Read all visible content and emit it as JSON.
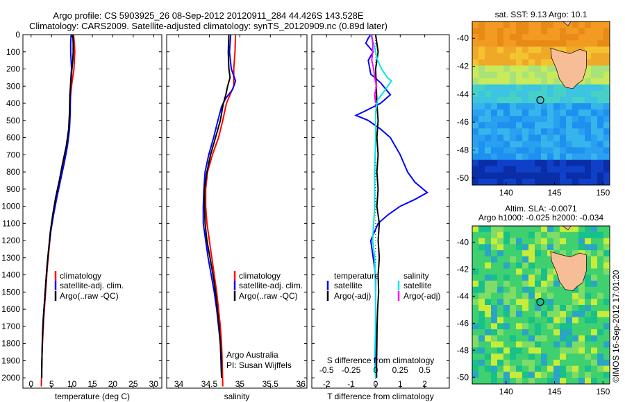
{
  "header": {
    "title_line1": "Argo profile: CS 5903925_26 08-Sep-2012 20120911_284 44.426S 143.528E",
    "title_line2": "Climatology: CARS2009. Satellite-adjusted climatology: synTS_20120909.nc (0.89d later)"
  },
  "colors": {
    "climatology": "#ff0000",
    "satellite": "#0000ff",
    "argo": "#000000",
    "salinity_satellite": "#00e5e5",
    "salinity_argo": "#ff00ff",
    "land": "#f6bd96"
  },
  "depth_ticks": [
    "0",
    "100",
    "200",
    "300",
    "400",
    "500",
    "600",
    "700",
    "800",
    "900",
    "1000",
    "1100",
    "1200",
    "1300",
    "1400",
    "1500",
    "1600",
    "1700",
    "1800",
    "1900",
    "2000"
  ],
  "chart_data": [
    {
      "type": "line",
      "id": "temperature",
      "xlabel": "temperature (deg C)",
      "ylabel": "",
      "xlim": [
        -2,
        32
      ],
      "ylim": [
        2060,
        0
      ],
      "xticks": [
        "0",
        "5",
        "10",
        "15",
        "20",
        "25",
        "30"
      ],
      "legend": [
        "climatology",
        "satellite-adj. clim.",
        "Argo(..raw -QC)"
      ],
      "series": [
        {
          "name": "climatology",
          "points": [
            [
              10.4,
              0
            ],
            [
              10.6,
              50
            ],
            [
              10.7,
              100
            ],
            [
              10.6,
              150
            ],
            [
              10.5,
              200
            ],
            [
              10.3,
              230
            ],
            [
              10.0,
              280
            ],
            [
              9.7,
              350
            ],
            [
              9.5,
              450
            ],
            [
              9.3,
              550
            ],
            [
              8.8,
              650
            ],
            [
              7.9,
              750
            ],
            [
              7.0,
              850
            ],
            [
              6.1,
              950
            ],
            [
              5.4,
              1050
            ],
            [
              4.8,
              1150
            ],
            [
              4.4,
              1250
            ],
            [
              4.0,
              1350
            ],
            [
              3.7,
              1450
            ],
            [
              3.4,
              1550
            ],
            [
              3.1,
              1650
            ],
            [
              2.9,
              1750
            ],
            [
              2.7,
              1850
            ],
            [
              2.6,
              1950
            ],
            [
              2.5,
              2050
            ]
          ]
        },
        {
          "name": "satellite-adj. clim.",
          "points": [
            [
              9.8,
              0
            ],
            [
              9.7,
              50
            ],
            [
              9.7,
              100
            ],
            [
              9.8,
              150
            ],
            [
              9.9,
              200
            ],
            [
              9.8,
              230
            ],
            [
              9.7,
              280
            ],
            [
              9.6,
              350
            ],
            [
              9.6,
              450
            ],
            [
              9.4,
              550
            ],
            [
              8.9,
              650
            ],
            [
              8.1,
              750
            ],
            [
              7.2,
              850
            ],
            [
              6.3,
              950
            ],
            [
              5.5,
              1050
            ],
            [
              4.8,
              1150
            ],
            [
              4.3,
              1250
            ],
            [
              3.9,
              1350
            ],
            [
              3.6,
              1450
            ],
            [
              3.3,
              1550
            ],
            [
              3.0,
              1650
            ],
            [
              2.8,
              1750
            ],
            [
              2.7,
              1850
            ],
            [
              2.6,
              1950
            ],
            [
              2.6,
              2000
            ]
          ]
        },
        {
          "name": "Argo(..raw -QC)",
          "points": [
            [
              10.2,
              0
            ],
            [
              10.3,
              50
            ],
            [
              10.3,
              100
            ],
            [
              10.2,
              150
            ],
            [
              10.0,
              200
            ],
            [
              9.9,
              230
            ],
            [
              9.7,
              280
            ],
            [
              9.5,
              350
            ],
            [
              9.4,
              450
            ],
            [
              9.2,
              550
            ],
            [
              8.6,
              650
            ],
            [
              7.7,
              750
            ],
            [
              6.9,
              850
            ],
            [
              6.0,
              950
            ],
            [
              5.3,
              1050
            ],
            [
              4.7,
              1150
            ],
            [
              4.3,
              1250
            ],
            [
              3.9,
              1350
            ],
            [
              3.6,
              1450
            ],
            [
              3.3,
              1550
            ],
            [
              3.0,
              1650
            ],
            [
              2.8,
              1750
            ],
            [
              2.7,
              1850
            ],
            [
              2.6,
              1950
            ],
            [
              2.6,
              2000
            ]
          ]
        }
      ]
    },
    {
      "type": "line",
      "id": "salinity",
      "xlabel": "salinity",
      "ylabel": "",
      "xlim": [
        33.8,
        36.1
      ],
      "ylim": [
        2060,
        0
      ],
      "xticks": [
        "34",
        "34.5",
        "35",
        "35.5",
        "36"
      ],
      "legend": [
        "climatology",
        "satellite-adj. clim.",
        "Argo(..raw -QC)"
      ],
      "annotations": [
        "Argo Australia",
        "PI: Susan Wijffels"
      ],
      "series": [
        {
          "name": "climatology",
          "points": [
            [
              34.93,
              0
            ],
            [
              34.92,
              100
            ],
            [
              34.9,
              200
            ],
            [
              34.9,
              250
            ],
            [
              34.9,
              300
            ],
            [
              34.84,
              350
            ],
            [
              34.78,
              400
            ],
            [
              34.72,
              500
            ],
            [
              34.65,
              600
            ],
            [
              34.55,
              700
            ],
            [
              34.47,
              800
            ],
            [
              34.44,
              900
            ],
            [
              34.44,
              1000
            ],
            [
              34.46,
              1100
            ],
            [
              34.5,
              1200
            ],
            [
              34.54,
              1300
            ],
            [
              34.58,
              1400
            ],
            [
              34.62,
              1500
            ],
            [
              34.65,
              1600
            ],
            [
              34.68,
              1700
            ],
            [
              34.7,
              1800
            ],
            [
              34.71,
              1900
            ],
            [
              34.72,
              2050
            ]
          ]
        },
        {
          "name": "satellite-adj. clim.",
          "points": [
            [
              34.85,
              0
            ],
            [
              34.83,
              100
            ],
            [
              34.86,
              200
            ],
            [
              34.93,
              270
            ],
            [
              34.88,
              320
            ],
            [
              34.77,
              370
            ],
            [
              34.7,
              420
            ],
            [
              34.64,
              500
            ],
            [
              34.57,
              600
            ],
            [
              34.49,
              700
            ],
            [
              34.43,
              800
            ],
            [
              34.41,
              900
            ],
            [
              34.4,
              1000
            ],
            [
              34.4,
              1100
            ],
            [
              34.44,
              1200
            ],
            [
              34.48,
              1300
            ],
            [
              34.53,
              1400
            ],
            [
              34.58,
              1500
            ],
            [
              34.62,
              1600
            ],
            [
              34.65,
              1700
            ],
            [
              34.68,
              1800
            ],
            [
              34.7,
              1900
            ],
            [
              34.7,
              2000
            ]
          ]
        },
        {
          "name": "Argo(..raw -QC)",
          "points": [
            [
              34.82,
              0
            ],
            [
              34.81,
              100
            ],
            [
              34.82,
              200
            ],
            [
              34.84,
              250
            ],
            [
              34.8,
              300
            ],
            [
              34.77,
              350
            ],
            [
              34.73,
              400
            ],
            [
              34.68,
              500
            ],
            [
              34.6,
              600
            ],
            [
              34.52,
              700
            ],
            [
              34.46,
              800
            ],
            [
              34.42,
              900
            ],
            [
              34.42,
              1000
            ],
            [
              34.43,
              1100
            ],
            [
              34.46,
              1200
            ],
            [
              34.51,
              1300
            ],
            [
              34.56,
              1400
            ],
            [
              34.6,
              1500
            ],
            [
              34.63,
              1600
            ],
            [
              34.66,
              1700
            ],
            [
              34.68,
              1800
            ],
            [
              34.69,
              1900
            ],
            [
              34.7,
              2000
            ]
          ]
        }
      ]
    },
    {
      "type": "line",
      "id": "differences",
      "xlabel": "T difference from climatology",
      "top_label": "S difference from climatology",
      "xlim": [
        -2.6,
        3.0
      ],
      "ylim": [
        2060,
        0
      ],
      "xticks_T": [
        "-2",
        "-1",
        "0",
        "1",
        "2"
      ],
      "xticks_S": [
        "-0.5",
        "-0.25",
        "0",
        "0.25",
        "0.5"
      ],
      "legend_temperature_heading": "temperature",
      "legend_salinity_heading": "salinity",
      "legend": [
        "satellite",
        "Argo(-adj)",
        "satellite",
        "Argo(-adj)"
      ],
      "series": [
        {
          "name": "temperature satellite",
          "points": [
            [
              -0.2,
              0
            ],
            [
              -0.3,
              20
            ],
            [
              -0.4,
              50
            ],
            [
              -0.1,
              100
            ],
            [
              -0.3,
              150
            ],
            [
              -0.2,
              230
            ],
            [
              0.2,
              280
            ],
            [
              0.6,
              350
            ],
            [
              0.2,
              400
            ],
            [
              -0.5,
              450
            ],
            [
              -0.8,
              470
            ],
            [
              -0.3,
              500
            ],
            [
              0.2,
              550
            ],
            [
              0.6,
              600
            ],
            [
              1.0,
              700
            ],
            [
              1.3,
              800
            ],
            [
              1.6,
              860
            ],
            [
              2.1,
              920
            ],
            [
              1.6,
              960
            ],
            [
              1.0,
              1000
            ],
            [
              0.5,
              1050
            ],
            [
              0.1,
              1100
            ],
            [
              -0.2,
              1200
            ],
            [
              -0.1,
              1300
            ],
            [
              0.0,
              1400
            ],
            [
              0.0,
              1600
            ],
            [
              0.0,
              1800
            ],
            [
              0.0,
              2000
            ]
          ]
        },
        {
          "name": "temperature Argo(-adj)",
          "points": [
            [
              0.0,
              0
            ],
            [
              0.1,
              100
            ],
            [
              0.0,
              200
            ],
            [
              0.05,
              400
            ],
            [
              0.1,
              500
            ],
            [
              0.05,
              600
            ],
            [
              0.1,
              700
            ],
            [
              0.05,
              800
            ],
            [
              0.1,
              900
            ],
            [
              0.05,
              1000
            ],
            [
              0.15,
              1100
            ],
            [
              0.1,
              1200
            ],
            [
              0.15,
              1300
            ],
            [
              0.1,
              1400
            ],
            [
              0.12,
              1500
            ],
            [
              0.08,
              1600
            ],
            [
              0.06,
              1700
            ],
            [
              0.05,
              1800
            ],
            [
              0.04,
              1900
            ],
            [
              0.04,
              2000
            ]
          ]
        },
        {
          "name": "salinity satellite",
          "points": [
            [
              -0.05,
              0
            ],
            [
              -0.02,
              50
            ],
            [
              0.0,
              100
            ],
            [
              0.02,
              150
            ],
            [
              0.06,
              200
            ],
            [
              0.12,
              250
            ],
            [
              0.16,
              270
            ],
            [
              0.1,
              320
            ],
            [
              0.02,
              380
            ],
            [
              0.0,
              450
            ],
            [
              0.0,
              600
            ],
            [
              -0.01,
              800
            ],
            [
              -0.01,
              1000
            ],
            [
              -0.02,
              1100
            ],
            [
              -0.03,
              1200
            ],
            [
              -0.01,
              1300
            ],
            [
              0.0,
              1500
            ],
            [
              0.0,
              1700
            ],
            [
              -0.01,
              1900
            ],
            [
              0.0,
              2000
            ]
          ]
        },
        {
          "name": "salinity Argo(-adj)",
          "points": [
            [
              -0.04,
              0
            ],
            [
              -0.03,
              50
            ],
            [
              -0.03,
              100
            ],
            [
              -0.04,
              150
            ],
            [
              -0.02,
              200
            ],
            [
              -0.01,
              250
            ],
            [
              0.01,
              300
            ],
            [
              -0.01,
              350
            ],
            [
              0.0,
              400
            ]
          ]
        }
      ]
    },
    {
      "type": "heatmap",
      "id": "sst_map",
      "title": "sat. SST: 9.13 Argo: 10.1",
      "xlim": [
        136.5,
        150.7
      ],
      "ylim": [
        -50.5,
        -38.8
      ],
      "xticks": [
        "140",
        "145",
        "150"
      ],
      "yticks": [
        "-40",
        "-42",
        "-44",
        "-46",
        "-48",
        "-50"
      ],
      "marker": [
        143.528,
        -44.426
      ]
    },
    {
      "type": "heatmap",
      "id": "sla_map",
      "title": "Altim. SLA: -0.0071",
      "subtitle": "Argo h1000: -0.025 h2000: -0.034",
      "xlim": [
        136.5,
        150.7
      ],
      "ylim": [
        -50.5,
        -38.8
      ],
      "xticks": [
        "140",
        "145",
        "150"
      ],
      "yticks": [
        "-40",
        "-42",
        "-44",
        "-46",
        "-48",
        "-50"
      ],
      "marker": [
        143.528,
        -44.426
      ]
    }
  ],
  "footer": {
    "stamp": "©IMOS 16-Sep-2012 17:01:20"
  }
}
